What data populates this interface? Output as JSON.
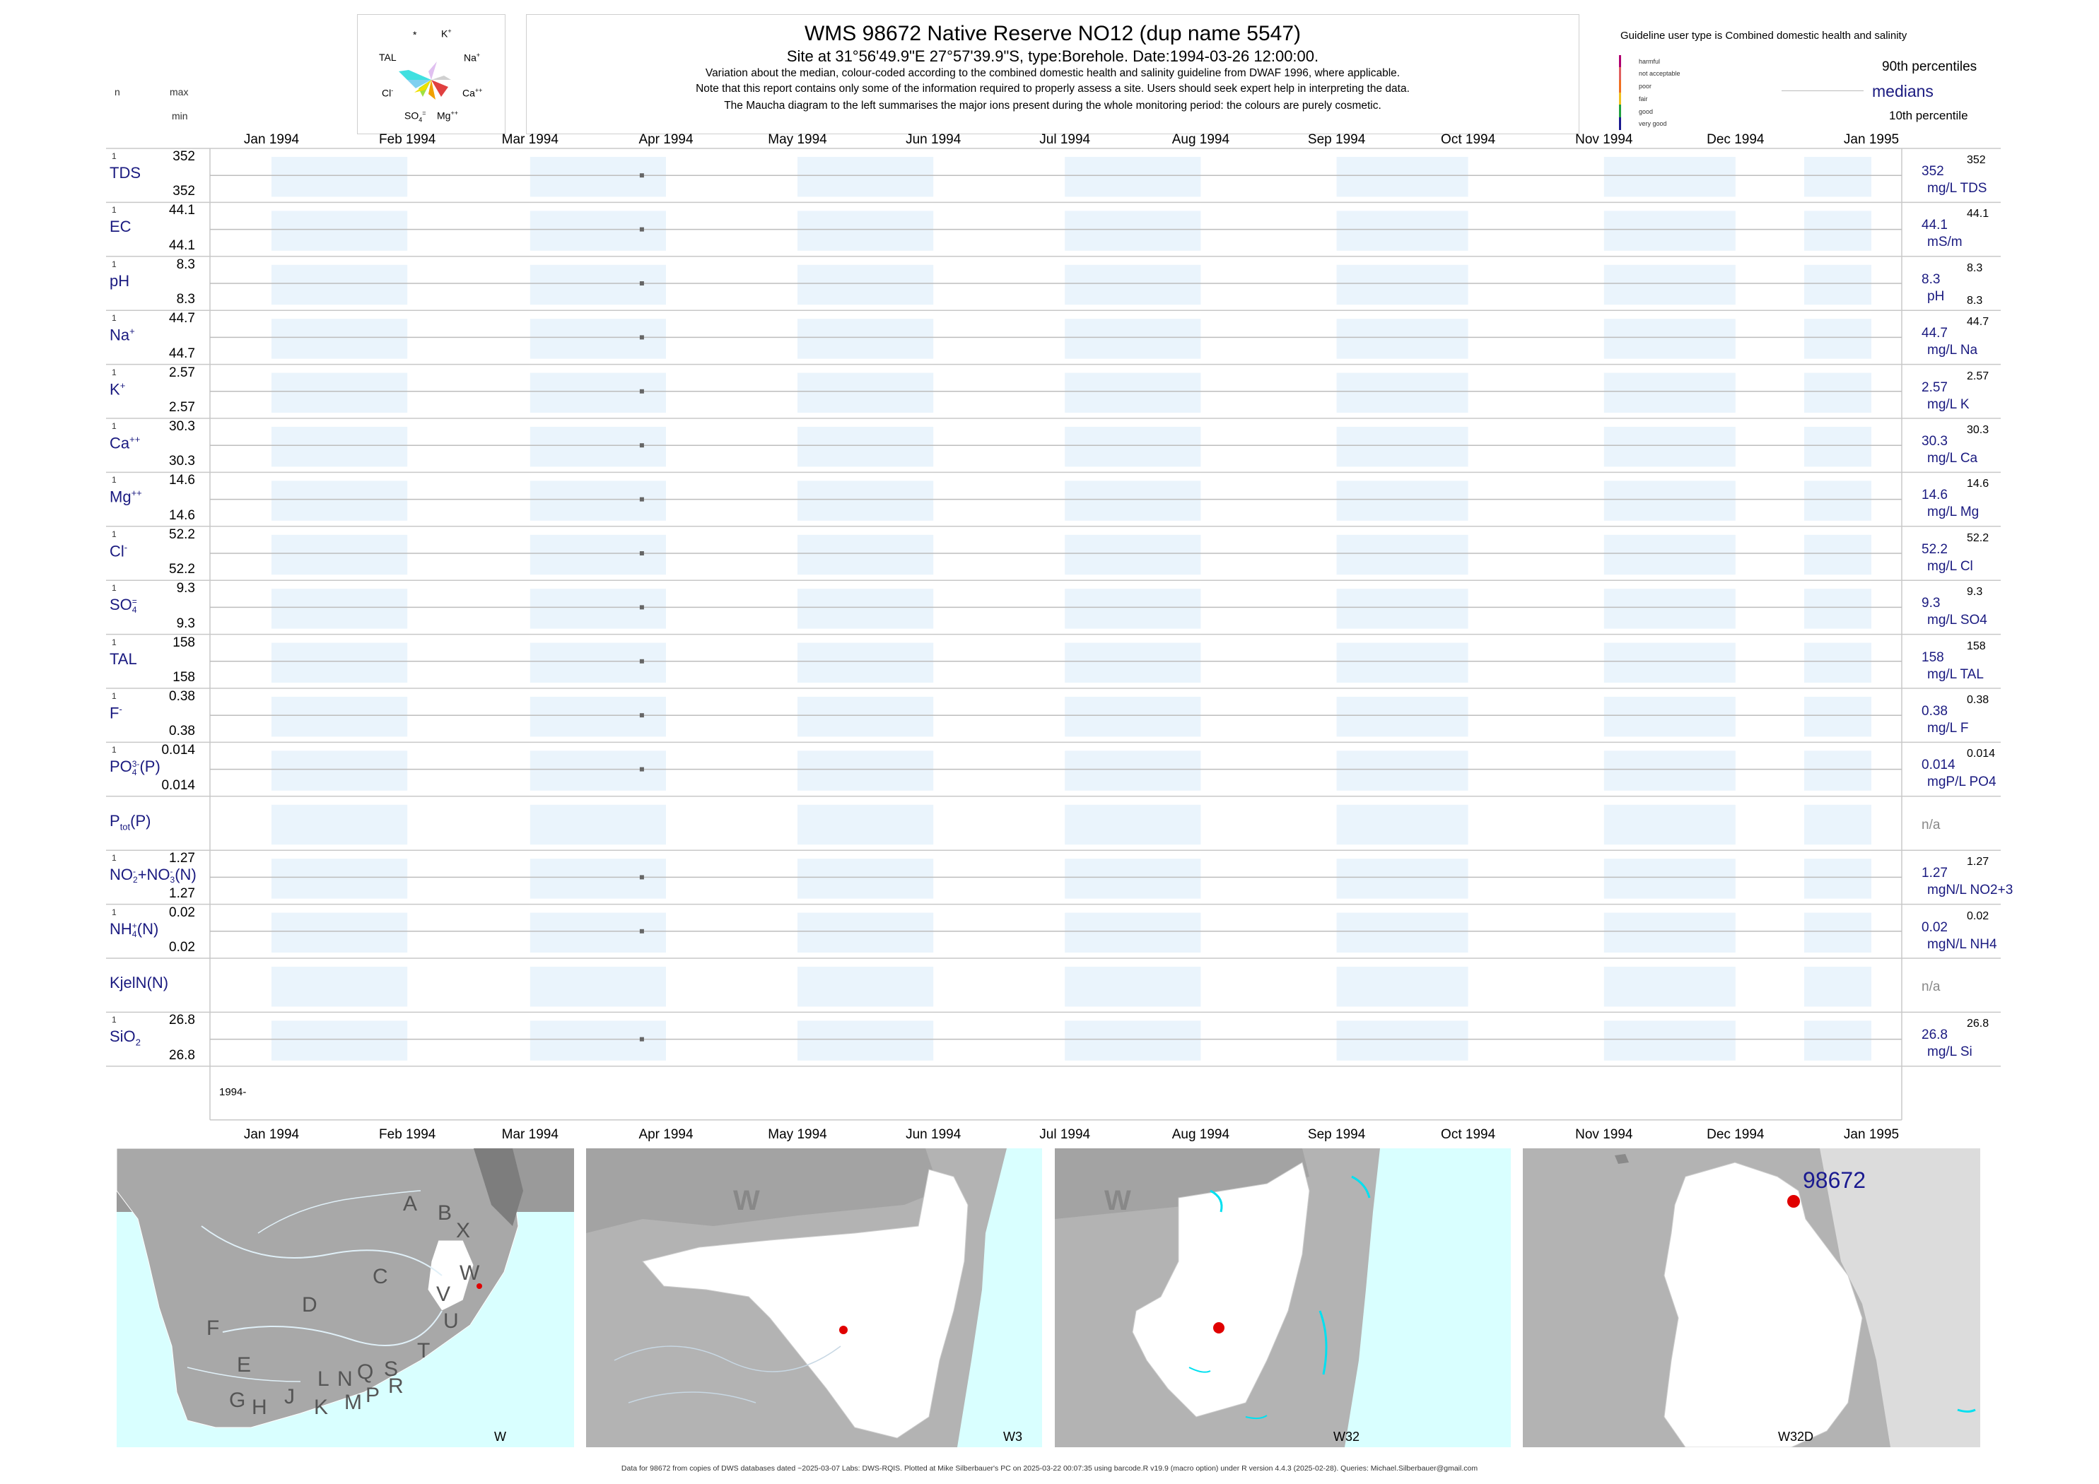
{
  "header": {
    "title": "WMS 98672  Native Reserve NO12 (dup name 5547)",
    "site": "Site at 31°56'49.9\"E 27°57'39.9\"S, type:Borehole. Date:1994-03-26 12:00:00.",
    "note1": "Variation about the median,  colour-coded according to the combined domestic health and salinity guideline from DWAF 1996, where applicable.",
    "note2": "Note that this report contains only some of the information required to properly assess a site. Users should seek expert help in interpreting the data.",
    "note3": "The Maucha diagram to the left summarises the major ions present during the whole monitoring period: the colours are purely cosmetic.",
    "col_n": "n",
    "col_max": "max",
    "col_min": "min"
  },
  "maucha": {
    "labels": {
      "star": "*",
      "k": "K",
      "tal": "TAL",
      "na": "Na",
      "cl": "Cl",
      "ca": "Ca",
      "so4": "SO",
      "mg": "Mg"
    }
  },
  "guideline": {
    "title": "Guideline user type is Combined domestic health and salinity",
    "classes": [
      "harmful",
      "not acceptable",
      "poor",
      "fair",
      "good",
      "very good"
    ],
    "colors": [
      "#b00070",
      "#e06060",
      "#f07020",
      "#f0c020",
      "#20a040",
      "#1a1a90"
    ],
    "p90": "90th percentiles",
    "medians": "medians",
    "p10": "10th percentile"
  },
  "chart_data": {
    "type": "scatter",
    "x_axis_months": [
      "Jan 1994",
      "Feb 1994",
      "Mar 1994",
      "Apr 1994",
      "May 1994",
      "Jun 1994",
      "Jul 1994",
      "Aug 1994",
      "Sep 1994",
      "Oct 1994",
      "Nov 1994",
      "Dec 1994",
      "Jan 1995"
    ],
    "sample_date": "1994-03-26",
    "year_label": "1994-",
    "series": [
      {
        "name": "TDS",
        "sup": "",
        "sub": "",
        "n": "1",
        "max": "352",
        "min": "352",
        "median": "352",
        "unit": "mg/L TDS",
        "p90": "352",
        "p10": "",
        "value": 352
      },
      {
        "name": "EC",
        "sup": "",
        "sub": "",
        "n": "1",
        "max": "44.1",
        "min": "44.1",
        "median": "44.1",
        "unit": "mS/m",
        "p90": "44.1",
        "p10": "",
        "value": 44.1
      },
      {
        "name": "pH",
        "sup": "",
        "sub": "",
        "n": "1",
        "max": "8.3",
        "min": "8.3",
        "median": "8.3",
        "unit": "pH",
        "p90": "8.3",
        "p10": "8.3",
        "value": 8.3
      },
      {
        "name": "Na",
        "sup": "+",
        "sub": "",
        "n": "1",
        "max": "44.7",
        "min": "44.7",
        "median": "44.7",
        "unit": "mg/L Na",
        "p90": "44.7",
        "p10": "",
        "value": 44.7
      },
      {
        "name": "K",
        "sup": "+",
        "sub": "",
        "n": "1",
        "max": "2.57",
        "min": "2.57",
        "median": "2.57",
        "unit": "mg/L K",
        "p90": "2.57",
        "p10": "",
        "value": 2.57
      },
      {
        "name": "Ca",
        "sup": "++",
        "sub": "",
        "n": "1",
        "max": "30.3",
        "min": "30.3",
        "median": "30.3",
        "unit": "mg/L Ca",
        "p90": "30.3",
        "p10": "",
        "value": 30.3
      },
      {
        "name": "Mg",
        "sup": "++",
        "sub": "",
        "n": "1",
        "max": "14.6",
        "min": "14.6",
        "median": "14.6",
        "unit": "mg/L Mg",
        "p90": "14.6",
        "p10": "",
        "value": 14.6
      },
      {
        "name": "Cl",
        "sup": "-",
        "sub": "",
        "n": "1",
        "max": "52.2",
        "min": "52.2",
        "median": "52.2",
        "unit": "mg/L Cl",
        "p90": "52.2",
        "p10": "",
        "value": 52.2
      },
      {
        "name": "SO",
        "sup": "=",
        "sub": "4",
        "n": "1",
        "max": "9.3",
        "min": "9.3",
        "median": "9.3",
        "unit": "mg/L SO4",
        "p90": "9.3",
        "p10": "",
        "value": 9.3
      },
      {
        "name": "TAL",
        "sup": "",
        "sub": "",
        "n": "1",
        "max": "158",
        "min": "158",
        "median": "158",
        "unit": "mg/L TAL",
        "p90": "158",
        "p10": "",
        "value": 158
      },
      {
        "name": "F",
        "sup": "-",
        "sub": "",
        "n": "1",
        "max": "0.38",
        "min": "0.38",
        "median": "0.38",
        "unit": "mg/L F",
        "p90": "0.38",
        "p10": "",
        "value": 0.38
      },
      {
        "name": "PO",
        "sup": "3-",
        "sub": "4",
        "suffix": "(P)",
        "n": "1",
        "max": "0.014",
        "min": "0.014",
        "median": "0.014",
        "unit": "mgP/L PO4",
        "p90": "0.014",
        "p10": "",
        "value": 0.014
      },
      {
        "name": "P",
        "sup": "",
        "sub": "tot",
        "suffix": "(P)",
        "n": "",
        "max": "",
        "min": "",
        "median": "n/a",
        "unit": "",
        "p90": "",
        "p10": "",
        "value": null
      },
      {
        "name": "NO",
        "sup": "-",
        "sub": "2",
        "suffix": "+NO",
        "sup2": "-",
        "sub2": "3",
        "suffix2": "(N)",
        "n": "1",
        "max": "1.27",
        "min": "1.27",
        "median": "1.27",
        "unit": "mgN/L NO2+3",
        "p90": "1.27",
        "p10": "",
        "value": 1.27
      },
      {
        "name": "NH",
        "sup": "+",
        "sub": "4",
        "suffix": "(N)",
        "n": "1",
        "max": "0.02",
        "min": "0.02",
        "median": "0.02",
        "unit": "mgN/L NH4",
        "p90": "0.02",
        "p10": "",
        "value": 0.02
      },
      {
        "name": "KjelN(N)",
        "sup": "",
        "sub": "",
        "n": "",
        "max": "",
        "min": "",
        "median": "n/a",
        "unit": "",
        "p90": "",
        "p10": "",
        "value": null
      },
      {
        "name": "SiO",
        "sup": "",
        "sub": "2",
        "n": "1",
        "max": "26.8",
        "min": "26.8",
        "median": "26.8",
        "unit": "mg/L Si",
        "p90": "26.8",
        "p10": "",
        "value": 26.8
      }
    ]
  },
  "maps": [
    {
      "label": "W",
      "letters": [
        "A",
        "B",
        "X",
        "W",
        "C",
        "V",
        "D",
        "U",
        "F",
        "T",
        "E",
        "L",
        "N",
        "Q",
        "S",
        "J",
        "R",
        "G",
        "H",
        "K",
        "M",
        "P"
      ]
    },
    {
      "label": "W3",
      "region": "W"
    },
    {
      "label": "W32",
      "region": "W"
    },
    {
      "label": "W32D",
      "site": "98672"
    }
  ],
  "footer": "Data for 98672 from copies of DWS databases dated ~2025-03-07 Labs: DWS-RQIS. Plotted at Mike Silberbauer's PC on 2025-03-22 00:07:35 using barcode.R v19.9 (macro option) under R version 4.4.3 (2025-02-28). Queries: Michael.Silberbauer@gmail.com"
}
